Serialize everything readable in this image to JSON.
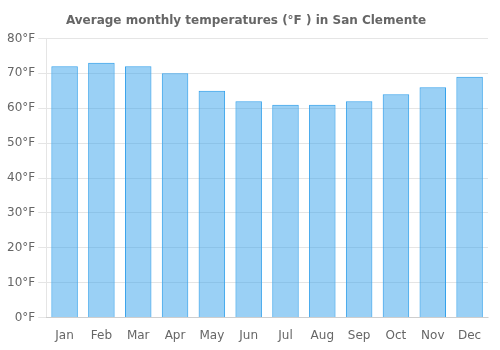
{
  "chart_data": {
    "type": "bar",
    "title": "Average monthly temperatures (°F ) in San Clemente",
    "categories": [
      "Jan",
      "Feb",
      "Mar",
      "Apr",
      "May",
      "Jun",
      "Jul",
      "Aug",
      "Sep",
      "Oct",
      "Nov",
      "Dec"
    ],
    "values": [
      72,
      73,
      72,
      70,
      65,
      62,
      61,
      61,
      62,
      64,
      66,
      69
    ],
    "ylim": [
      0,
      80
    ],
    "yticks": [
      {
        "value": 0,
        "label": "0°F"
      },
      {
        "value": 10,
        "label": "10°F"
      },
      {
        "value": 20,
        "label": "20°F"
      },
      {
        "value": 30,
        "label": "30°F"
      },
      {
        "value": 40,
        "label": "40°F"
      },
      {
        "value": 50,
        "label": "50°F"
      },
      {
        "value": 60,
        "label": "60°F"
      },
      {
        "value": 70,
        "label": "70°F"
      },
      {
        "value": 80,
        "label": "80°F"
      }
    ],
    "grid": true
  }
}
